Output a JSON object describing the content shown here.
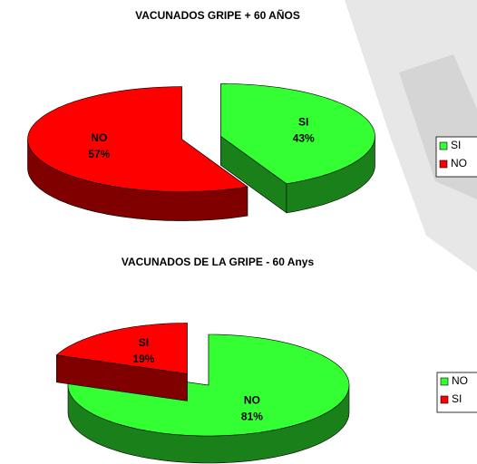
{
  "chart_data": [
    {
      "type": "pie",
      "title": "VACUNADOS GRIPE + 60 AÑOS",
      "categories": [
        "SI",
        "NO"
      ],
      "values": [
        43,
        57
      ],
      "value_labels": [
        "43%",
        "57%"
      ],
      "colors": [
        "#33ff33",
        "#ff0000"
      ]
    },
    {
      "type": "pie",
      "title": "VACUNADOS DE LA GRIPE -  60 Anys",
      "categories": [
        "NO",
        "SI"
      ],
      "values": [
        81,
        19
      ],
      "value_labels": [
        "81%",
        "19%"
      ],
      "colors": [
        "#33ff33",
        "#ff0000"
      ]
    }
  ]
}
